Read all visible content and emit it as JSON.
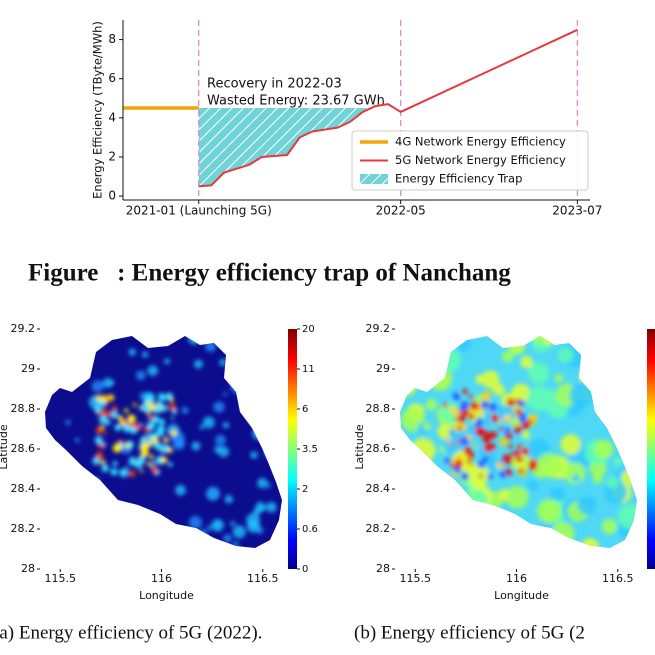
{
  "chart_data": {
    "type": "line",
    "ylabel": "Energy Efficiency (TByte/MWh)",
    "xlim": [
      "2020-07",
      "2023-08"
    ],
    "xticks": [
      {
        "value": "2021-01",
        "label": "2021-01 (Launching 5G)"
      },
      "2022-05",
      "2023-07"
    ],
    "ylim": [
      -0.2,
      9
    ],
    "yticks": [
      0,
      2,
      4,
      6,
      8
    ],
    "legend": "lower right",
    "annotations": [
      "Recovery in 2022-03",
      "Wasted Energy: 23.67 GWh"
    ],
    "series": [
      {
        "name": "4G Network Energy Efficiency",
        "color": "#f5a30a",
        "x": [
          "2020-07",
          "2021-01"
        ],
        "values": [
          4.5,
          4.5
        ]
      },
      {
        "name": "5G Network Energy Efficiency",
        "color": "#e8383d",
        "x": [
          "2021-01",
          "2021-02",
          "2021-03",
          "2021-04",
          "2021-05",
          "2021-06",
          "2021-07",
          "2021-08",
          "2021-09",
          "2021-10",
          "2021-11",
          "2021-12",
          "2022-01",
          "2022-02",
          "2022-03",
          "2022-04",
          "2022-05",
          "2023-07"
        ],
        "values": [
          0.5,
          0.55,
          1.2,
          1.4,
          1.6,
          2.0,
          2.05,
          2.1,
          3.0,
          3.3,
          3.4,
          3.5,
          3.8,
          4.3,
          4.6,
          4.7,
          4.3,
          8.5
        ]
      },
      {
        "name": "Energy Efficiency Trap",
        "color": "#6fd3d8",
        "type": "area",
        "hatch": true
      }
    ]
  },
  "figure_caption": "Figure   : Energy efficiency trap of Nanchang",
  "maps": [
    {
      "xlabel": "Longitude",
      "ylabel": "Latitude",
      "xlim": [
        115.4,
        116.6
      ],
      "ylim": [
        28,
        29.2
      ],
      "xticks": [
        115.5,
        116,
        116.5
      ],
      "yticks": [
        29.2,
        29,
        28.8,
        28.6,
        28.4,
        28.2,
        28
      ],
      "colorbar_ticks": [
        0,
        0.6,
        2,
        3.5,
        6,
        11,
        20
      ]
    },
    {
      "xlabel": "Longitude",
      "ylabel": "Latitude",
      "xlim": [
        115.4,
        116.6
      ],
      "ylim": [
        28,
        29.2
      ],
      "xticks": [
        115.5,
        116,
        116.5
      ],
      "yticks": [
        29.2,
        29,
        28.8,
        28.6,
        28.4,
        28.2,
        28
      ]
    }
  ],
  "subcaptions": [
    "(a) Energy efficiency of 5G (2022).",
    "(b) Energy efficiency of 5G (2"
  ]
}
